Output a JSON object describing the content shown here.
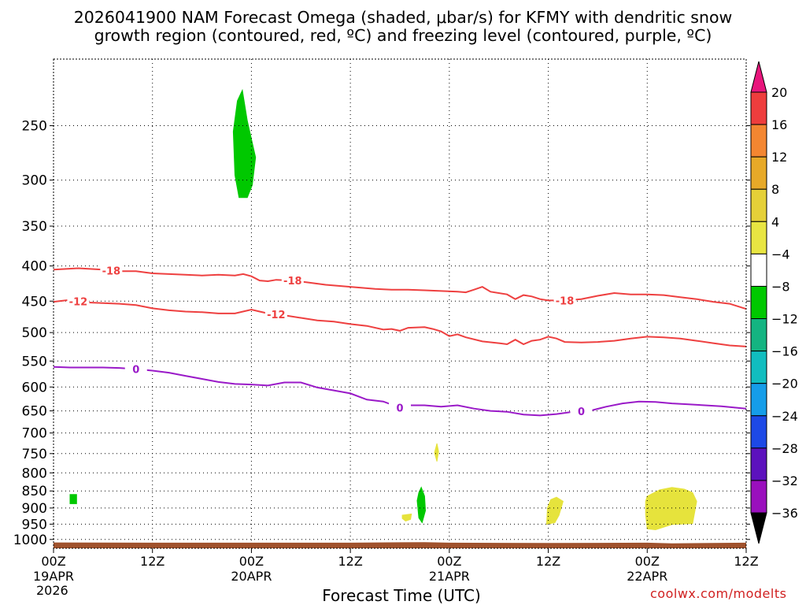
{
  "chart_data": {
    "type": "time-height cross section",
    "title_line1": "2026041900 NAM Forecast Omega (shaded, μbar/s) for KFMY with dendritic snow",
    "title_line2": "growth region (contoured, red, ºC) and freezing level (contoured, purple, ºC)",
    "xlabel": "Forecast Time (UTC)",
    "credit": "coolwx.com/modelts",
    "start_year": "2026",
    "x_range_hours": [
      0,
      84
    ],
    "x_ticks": [
      {
        "h": 0,
        "top": "00Z",
        "bottom": "19APR"
      },
      {
        "h": 12,
        "top": "12Z",
        "bottom": ""
      },
      {
        "h": 24,
        "top": "00Z",
        "bottom": "20APR"
      },
      {
        "h": 36,
        "top": "12Z",
        "bottom": ""
      },
      {
        "h": 48,
        "top": "00Z",
        "bottom": "21APR"
      },
      {
        "h": 60,
        "top": "12Z",
        "bottom": ""
      },
      {
        "h": 72,
        "top": "00Z",
        "bottom": "22APR"
      },
      {
        "h": 84,
        "top": "12Z",
        "bottom": ""
      }
    ],
    "y_ticks_hPa": [
      250,
      300,
      350,
      400,
      450,
      500,
      550,
      600,
      650,
      700,
      750,
      800,
      850,
      900,
      950,
      1000
    ],
    "y_range_hPa": [
      200,
      1030
    ],
    "contours": [
      {
        "name": "-18C isotherm",
        "color": "#ee4040",
        "label": "-18",
        "label_at_hours": [
          7,
          29,
          62
        ],
        "points": [
          [
            0,
            405
          ],
          [
            3,
            403
          ],
          [
            6,
            405
          ],
          [
            8,
            407
          ],
          [
            10,
            407
          ],
          [
            12,
            410
          ],
          [
            14,
            411
          ],
          [
            16,
            412
          ],
          [
            18,
            413
          ],
          [
            20,
            412
          ],
          [
            22,
            413
          ],
          [
            23,
            411
          ],
          [
            24,
            414
          ],
          [
            25,
            420
          ],
          [
            26,
            421
          ],
          [
            27,
            419
          ],
          [
            29,
            420
          ],
          [
            31,
            423
          ],
          [
            33,
            426
          ],
          [
            35,
            428
          ],
          [
            37,
            430
          ],
          [
            39,
            432
          ],
          [
            41,
            433
          ],
          [
            43,
            433
          ],
          [
            45,
            434
          ],
          [
            47,
            435
          ],
          [
            49,
            436
          ],
          [
            50,
            437
          ],
          [
            51,
            433
          ],
          [
            52,
            429
          ],
          [
            53,
            436
          ],
          [
            55,
            440
          ],
          [
            56,
            447
          ],
          [
            57,
            441
          ],
          [
            58,
            443
          ],
          [
            59,
            447
          ],
          [
            60,
            449
          ],
          [
            62,
            449
          ],
          [
            64,
            447
          ],
          [
            66,
            442
          ],
          [
            68,
            438
          ],
          [
            70,
            440
          ],
          [
            72,
            440
          ],
          [
            74,
            441
          ],
          [
            76,
            444
          ],
          [
            78,
            447
          ],
          [
            80,
            451
          ],
          [
            82,
            454
          ],
          [
            84,
            462
          ]
        ]
      },
      {
        "name": "-12C isotherm",
        "color": "#ee4040",
        "label": "-12",
        "label_at_hours": [
          3,
          27
        ],
        "points": [
          [
            0,
            451
          ],
          [
            2,
            448
          ],
          [
            4,
            452
          ],
          [
            6,
            453
          ],
          [
            8,
            454
          ],
          [
            10,
            456
          ],
          [
            12,
            461
          ],
          [
            14,
            464
          ],
          [
            16,
            466
          ],
          [
            18,
            467
          ],
          [
            20,
            469
          ],
          [
            22,
            469
          ],
          [
            24,
            463
          ],
          [
            25,
            466
          ],
          [
            26,
            469
          ],
          [
            28,
            472
          ],
          [
            30,
            476
          ],
          [
            32,
            480
          ],
          [
            34,
            482
          ],
          [
            36,
            486
          ],
          [
            38,
            489
          ],
          [
            40,
            495
          ],
          [
            41,
            494
          ],
          [
            42,
            497
          ],
          [
            43,
            492
          ],
          [
            45,
            491
          ],
          [
            46,
            494
          ],
          [
            47,
            498
          ],
          [
            48,
            506
          ],
          [
            49,
            503
          ],
          [
            50,
            508
          ],
          [
            52,
            515
          ],
          [
            54,
            518
          ],
          [
            55,
            520
          ],
          [
            56,
            512
          ],
          [
            57,
            520
          ],
          [
            58,
            514
          ],
          [
            59,
            512
          ],
          [
            60,
            507
          ],
          [
            61,
            510
          ],
          [
            62,
            516
          ],
          [
            64,
            517
          ],
          [
            66,
            516
          ],
          [
            68,
            514
          ],
          [
            70,
            510
          ],
          [
            72,
            507
          ],
          [
            74,
            508
          ],
          [
            76,
            510
          ],
          [
            78,
            514
          ],
          [
            80,
            518
          ],
          [
            82,
            522
          ],
          [
            84,
            524
          ]
        ]
      },
      {
        "name": "0C freezing level",
        "color": "#9a1ac8",
        "label": "0",
        "label_at_hours": [
          10,
          42,
          64
        ],
        "points": [
          [
            0,
            561
          ],
          [
            2,
            562
          ],
          [
            4,
            562
          ],
          [
            6,
            562
          ],
          [
            8,
            563
          ],
          [
            10,
            565
          ],
          [
            12,
            568
          ],
          [
            14,
            572
          ],
          [
            16,
            578
          ],
          [
            18,
            584
          ],
          [
            20,
            590
          ],
          [
            22,
            594
          ],
          [
            24,
            595
          ],
          [
            26,
            597
          ],
          [
            28,
            591
          ],
          [
            30,
            591
          ],
          [
            32,
            601
          ],
          [
            34,
            607
          ],
          [
            36,
            613
          ],
          [
            38,
            626
          ],
          [
            40,
            630
          ],
          [
            42,
            643
          ],
          [
            43,
            638
          ],
          [
            45,
            638
          ],
          [
            47,
            641
          ],
          [
            49,
            638
          ],
          [
            51,
            645
          ],
          [
            53,
            650
          ],
          [
            55,
            652
          ],
          [
            57,
            658
          ],
          [
            59,
            660
          ],
          [
            61,
            657
          ],
          [
            63,
            652
          ],
          [
            65,
            650
          ],
          [
            67,
            641
          ],
          [
            69,
            634
          ],
          [
            71,
            630
          ],
          [
            73,
            631
          ],
          [
            75,
            634
          ],
          [
            77,
            636
          ],
          [
            79,
            638
          ],
          [
            81,
            640
          ],
          [
            84,
            645
          ]
        ]
      }
    ],
    "shaded_regions": [
      {
        "name": "upper green blob",
        "level": "-8 to -4",
        "color": "#00c800",
        "points": [
          [
            22.9,
            222
          ],
          [
            23.5,
            246
          ],
          [
            24.5,
            278
          ],
          [
            24.1,
            305
          ],
          [
            23.5,
            318
          ],
          [
            22.5,
            318
          ],
          [
            22.0,
            295
          ],
          [
            21.8,
            255
          ],
          [
            22.3,
            230
          ]
        ]
      },
      {
        "name": "low green square",
        "level": "-8 to -4",
        "color": "#00c800",
        "points": [
          [
            2.0,
            860
          ],
          [
            2.8,
            860
          ],
          [
            2.8,
            887
          ],
          [
            2.0,
            887
          ]
        ]
      },
      {
        "name": "low green blob",
        "level": "-8 to -4",
        "color": "#00c800",
        "points": [
          [
            44.6,
            840
          ],
          [
            45.0,
            865
          ],
          [
            45.1,
            908
          ],
          [
            44.7,
            945
          ],
          [
            44.3,
            930
          ],
          [
            44.1,
            878
          ],
          [
            44.3,
            855
          ]
        ]
      },
      {
        "name": "yellow blob small",
        "level": "4 to 8",
        "color": "#e6e33c",
        "points": [
          [
            42.3,
            922
          ],
          [
            43.4,
            918
          ],
          [
            43.3,
            935
          ],
          [
            42.7,
            940
          ],
          [
            42.3,
            932
          ]
        ]
      },
      {
        "name": "yellow speck",
        "level": "4 to 8",
        "color": "#e6e33c",
        "points": [
          [
            46.5,
            725
          ],
          [
            46.7,
            745
          ],
          [
            46.5,
            770
          ],
          [
            46.2,
            748
          ]
        ]
      },
      {
        "name": "yellow blob mid",
        "level": "4 to 8",
        "color": "#e6e33c",
        "points": [
          [
            61.0,
            868
          ],
          [
            61.8,
            880
          ],
          [
            61.3,
            922
          ],
          [
            60.8,
            945
          ],
          [
            59.8,
            950
          ],
          [
            59.9,
            900
          ],
          [
            60.3,
            875
          ]
        ]
      },
      {
        "name": "yellow blob large",
        "level": "4 to 8",
        "color": "#e6e33c",
        "points": [
          [
            72.0,
            865
          ],
          [
            73.5,
            847
          ],
          [
            75.0,
            840
          ],
          [
            76.5,
            845
          ],
          [
            77.5,
            855
          ],
          [
            78.0,
            880
          ],
          [
            77.5,
            948
          ],
          [
            75.0,
            951
          ],
          [
            73.0,
            968
          ],
          [
            72.0,
            965
          ],
          [
            71.8,
            920
          ],
          [
            71.8,
            880
          ]
        ]
      }
    ],
    "colorbar": {
      "levels": [
        "20",
        "16",
        "12",
        "8",
        "4",
        "−4",
        "−8",
        "−12",
        "−16",
        "−20",
        "−24",
        "−28",
        "−32",
        "−36"
      ],
      "colors": [
        "#ee3d3d",
        "#f38631",
        "#e7a928",
        "#e5d038",
        "#e8e542",
        "#ffffff",
        "#00c800",
        "#14b481",
        "#11bdbf",
        "#159de9",
        "#1d49e6",
        "#5c11bd",
        "#9a0fbd",
        "#a6a6a6",
        "#000000"
      ],
      "top_arrow_color": "#e8157c",
      "bottom_arrow_color": "#000000"
    }
  }
}
